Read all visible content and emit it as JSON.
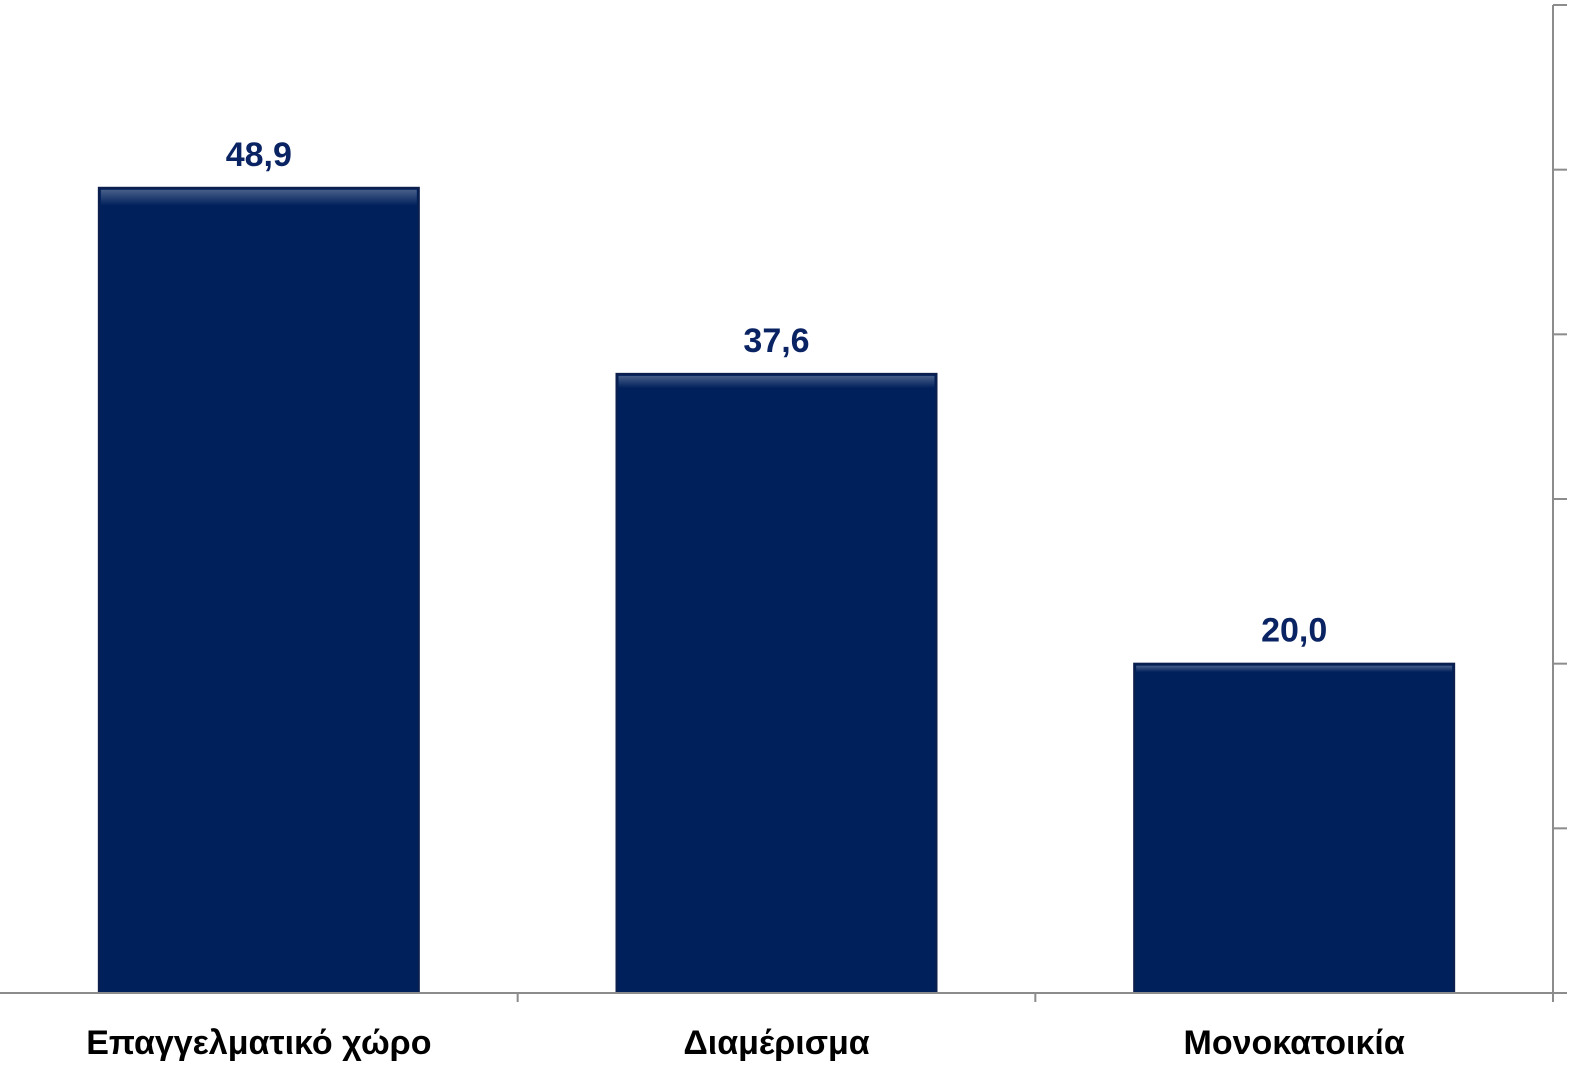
{
  "chart_data": {
    "type": "bar",
    "categories": [
      "Επαγγελματικό χώρο",
      "Διαμέρισμα",
      "Μονοκατοικία"
    ],
    "values": [
      48.9,
      37.6,
      20.0
    ],
    "value_labels": [
      "48,9",
      "37,6",
      "20,0"
    ],
    "ylim": [
      0,
      60
    ],
    "y_axis_side": "right",
    "y_tick_values": [
      0,
      10,
      20,
      30,
      40,
      50,
      60
    ],
    "grid": false,
    "colors": {
      "bar": "#00205b",
      "bar_edge": "#0d1f4d",
      "data_label": "#0a2463",
      "axis": "#8c8c8c"
    }
  }
}
